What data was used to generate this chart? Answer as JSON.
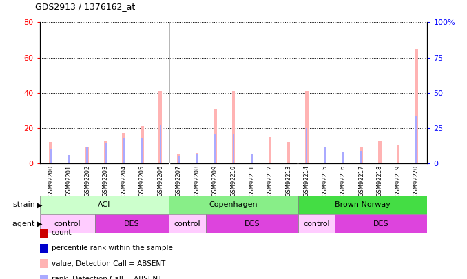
{
  "title": "GDS2913 / 1376162_at",
  "samples": [
    "GSM92200",
    "GSM92201",
    "GSM92202",
    "GSM92203",
    "GSM92204",
    "GSM92205",
    "GSM92206",
    "GSM92207",
    "GSM92208",
    "GSM92209",
    "GSM92210",
    "GSM92211",
    "GSM92212",
    "GSM92213",
    "GSM92214",
    "GSM92215",
    "GSM92216",
    "GSM92217",
    "GSM92218",
    "GSM92219",
    "GSM92220"
  ],
  "count_values": [
    12,
    0,
    9,
    13,
    17,
    21,
    41,
    5,
    6,
    31,
    41,
    0,
    15,
    12,
    41,
    0,
    0,
    9,
    13,
    10,
    65
  ],
  "rank_values": [
    10,
    6,
    11,
    14,
    18,
    18,
    27,
    5,
    7,
    21,
    21,
    7,
    0,
    0,
    25,
    11,
    8,
    9,
    0,
    0,
    33
  ],
  "count_color_absent": "#ffb3b3",
  "rank_color_absent": "#aaaaff",
  "ylim_left": [
    0,
    80
  ],
  "ylim_right": [
    0,
    100
  ],
  "yticks_left": [
    0,
    20,
    40,
    60,
    80
  ],
  "yticks_right": [
    0,
    25,
    50,
    75,
    100
  ],
  "background_color": "#ffffff",
  "xtick_bg_color": "#cccccc",
  "strain_groups": [
    {
      "label": "ACI",
      "start": 0,
      "end": 7,
      "color": "#ccffcc"
    },
    {
      "label": "Copenhagen",
      "start": 7,
      "end": 14,
      "color": "#88ee88"
    },
    {
      "label": "Brown Norway",
      "start": 14,
      "end": 21,
      "color": "#44dd44"
    }
  ],
  "agent_groups": [
    {
      "label": "control",
      "start": 0,
      "end": 3,
      "color": "#ffccff"
    },
    {
      "label": "DES",
      "start": 3,
      "end": 7,
      "color": "#dd44dd"
    },
    {
      "label": "control",
      "start": 7,
      "end": 9,
      "color": "#ffccff"
    },
    {
      "label": "DES",
      "start": 9,
      "end": 14,
      "color": "#dd44dd"
    },
    {
      "label": "control",
      "start": 14,
      "end": 16,
      "color": "#ffccff"
    },
    {
      "label": "DES",
      "start": 16,
      "end": 21,
      "color": "#dd44dd"
    }
  ],
  "legend_items": [
    {
      "label": "count",
      "color": "#cc0000"
    },
    {
      "label": "percentile rank within the sample",
      "color": "#0000cc"
    },
    {
      "label": "value, Detection Call = ABSENT",
      "color": "#ffb3b3"
    },
    {
      "label": "rank, Detection Call = ABSENT",
      "color": "#aaaaff"
    }
  ],
  "bar_width": 0.18
}
